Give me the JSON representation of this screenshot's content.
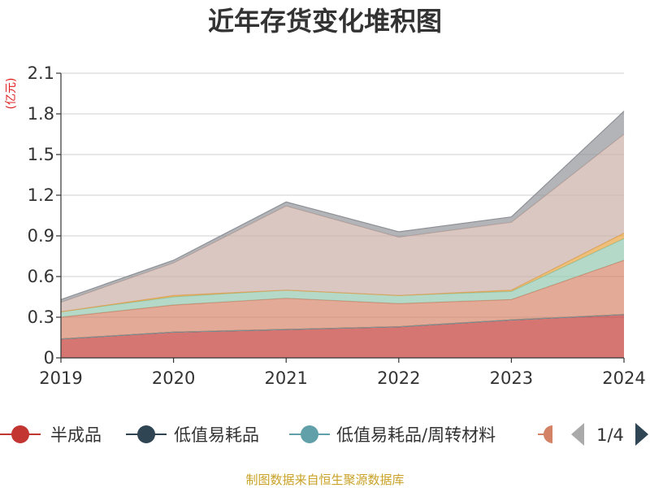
{
  "chart_data": {
    "type": "area",
    "stacked": true,
    "title": "近年存货变化堆积图",
    "unit_label": "(亿元)",
    "x": [
      "2019",
      "2020",
      "2021",
      "2022",
      "2023",
      "2024"
    ],
    "ylim": [
      0,
      2.1
    ],
    "yticks": [
      "0",
      "0.3",
      "0.6",
      "0.9",
      "1.2",
      "1.5",
      "1.8",
      "2.1"
    ],
    "grid": true,
    "legend_position": "bottom",
    "series": [
      {
        "name": "半成品",
        "color": "#c23531",
        "values": [
          0.14,
          0.19,
          0.21,
          0.23,
          0.28,
          0.32
        ]
      },
      {
        "name": "低值易耗品",
        "color": "#2f4554",
        "values": [
          0.0,
          0.0,
          0.0,
          0.0,
          0.0,
          0.0
        ]
      },
      {
        "name": "低值易耗品/周转材料",
        "color": "#61a0a8",
        "values": [
          0.0,
          0.0,
          0.0,
          0.0,
          0.0,
          0.0
        ]
      },
      {
        "name": "",
        "color": "#d48265",
        "values": [
          0.16,
          0.2,
          0.23,
          0.17,
          0.15,
          0.4
        ]
      },
      {
        "name": "",
        "color": "#91c7ae",
        "values": [
          0.04,
          0.06,
          0.06,
          0.06,
          0.06,
          0.16
        ]
      },
      {
        "name": "",
        "color": "#e6a23c",
        "values": [
          0.0,
          0.01,
          0.0,
          0.0,
          0.01,
          0.04
        ]
      },
      {
        "name": "",
        "color": "#c9ada4",
        "values": [
          0.07,
          0.24,
          0.62,
          0.43,
          0.5,
          0.73
        ]
      },
      {
        "name": "",
        "color": "#8e9196",
        "values": [
          0.02,
          0.02,
          0.03,
          0.04,
          0.04,
          0.17
        ]
      }
    ],
    "legend": {
      "page_label": "1/4",
      "prev_color": "#aaaaaa",
      "next_color": "#2f4554"
    },
    "source": "制图数据来自恒生聚源数据库"
  }
}
